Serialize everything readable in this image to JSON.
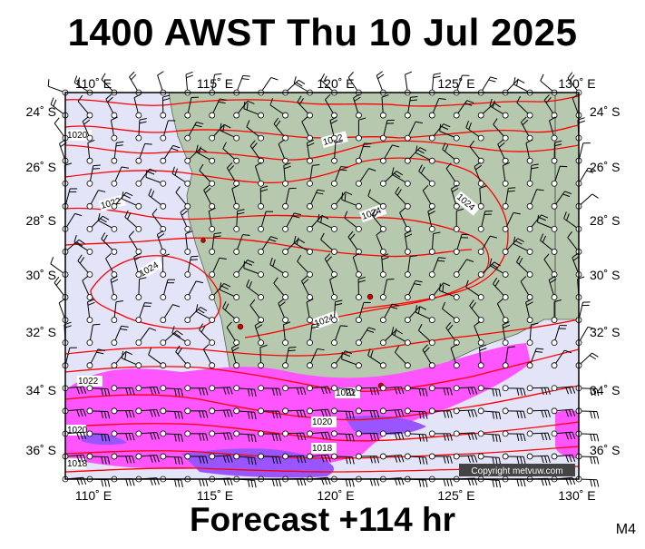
{
  "title": "1400 AWST Thu 10 Jul 2025",
  "footer": "Forecast +114 hr",
  "model_tag": "M4",
  "copyright": "Copyright metvuw.com",
  "lon_labels": [
    "110˚ E",
    "115˚ E",
    "120˚ E",
    "125˚ E",
    "130˚ E"
  ],
  "lat_labels": [
    "24˚ S",
    "26˚ S",
    "28˚ S",
    "30˚ S",
    "32˚ S",
    "34˚ S",
    "36˚ S"
  ],
  "isobar_labels": [
    "1020",
    "1022",
    "1022",
    "1024",
    "1024",
    "1024",
    "1024",
    "1022",
    "1022",
    "1020",
    "1020",
    "1018",
    "1018"
  ],
  "colors": {
    "sea": "#e4e4f8",
    "land": "#b6c9ae",
    "isobar": "#ff0000",
    "rain_light": "#ff55ff",
    "rain_heavy": "#9955ff",
    "barb": "#000000"
  }
}
